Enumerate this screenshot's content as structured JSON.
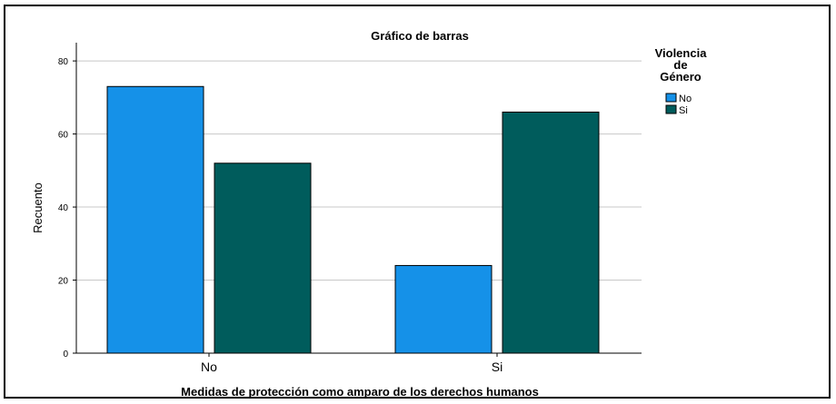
{
  "chart_data": {
    "type": "bar",
    "title": "Gráfico de barras",
    "xlabel": "Medidas de protección como amparo de los derechos humanos",
    "ylabel": "Recuento",
    "categories": [
      "No",
      "Si"
    ],
    "series": [
      {
        "name": "No",
        "color": "#1591e8",
        "values": [
          73,
          24
        ]
      },
      {
        "name": "Si",
        "color": "#005c5c",
        "values": [
          52,
          66
        ]
      }
    ],
    "ylim": [
      0,
      85
    ],
    "yticks": [
      "0",
      "20",
      "40",
      "60",
      "80"
    ],
    "grid": true,
    "legend": {
      "title_lines": [
        "Violencia",
        "de",
        "Género"
      ],
      "placement": "right"
    }
  }
}
